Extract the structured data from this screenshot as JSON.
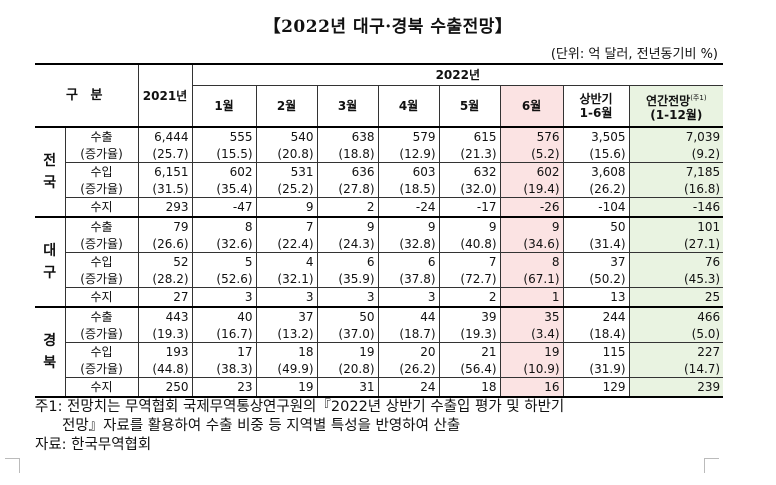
{
  "title": "【2022년 대구·경북 수출전망】",
  "unit": "(단위: 억 달러, 전년동기비 %)",
  "header": {
    "category": "구  분",
    "year2021": "2021년",
    "year2022": "2022년",
    "months": [
      "1월",
      "2월",
      "3월",
      "4월",
      "5월",
      "6월"
    ],
    "half_line1": "상반기",
    "half_line2": "1-6월",
    "annual_line1": "연간전망",
    "annual_note": "(주1)",
    "annual_line2": "(1-12월)"
  },
  "regions": [
    {
      "name_chars": [
        "전",
        "국"
      ],
      "rows": [
        {
          "label": "수출",
          "values": [
            "6,444",
            "555",
            "540",
            "638",
            "579",
            "615",
            "576",
            "3,505",
            "7,039"
          ]
        },
        {
          "label": "(증가율)",
          "values": [
            "(25.7)",
            "(15.5)",
            "(20.8)",
            "(18.8)",
            "(12.9)",
            "(21.3)",
            "(5.2)",
            "(15.6)",
            "(9.2)"
          ]
        },
        {
          "label": "수입",
          "values": [
            "6,151",
            "602",
            "531",
            "636",
            "603",
            "632",
            "602",
            "3,608",
            "7,185"
          ]
        },
        {
          "label": "(증가율)",
          "values": [
            "(31.5)",
            "(35.4)",
            "(25.2)",
            "(27.8)",
            "(18.5)",
            "(32.0)",
            "(19.4)",
            "(26.2)",
            "(16.8)"
          ]
        },
        {
          "label": "수지",
          "values": [
            "293",
            "-47",
            "9",
            "2",
            "-24",
            "-17",
            "-26",
            "-104",
            "-146"
          ]
        }
      ]
    },
    {
      "name_chars": [
        "대",
        "구"
      ],
      "rows": [
        {
          "label": "수출",
          "values": [
            "79",
            "8",
            "7",
            "9",
            "9",
            "9",
            "9",
            "50",
            "101"
          ]
        },
        {
          "label": "(증가율)",
          "values": [
            "(26.6)",
            "(32.6)",
            "(22.4)",
            "(24.3)",
            "(32.8)",
            "(40.8)",
            "(34.6)",
            "(31.4)",
            "(27.1)"
          ]
        },
        {
          "label": "수입",
          "values": [
            "52",
            "5",
            "4",
            "6",
            "6",
            "7",
            "8",
            "37",
            "76"
          ]
        },
        {
          "label": "(증가율)",
          "values": [
            "(28.2)",
            "(52.6)",
            "(32.1)",
            "(35.9)",
            "(37.8)",
            "(72.7)",
            "(67.1)",
            "(50.2)",
            "(45.3)"
          ]
        },
        {
          "label": "수지",
          "values": [
            "27",
            "3",
            "3",
            "3",
            "3",
            "2",
            "1",
            "13",
            "25"
          ]
        }
      ]
    },
    {
      "name_chars": [
        "경",
        "북"
      ],
      "rows": [
        {
          "label": "수출",
          "values": [
            "443",
            "40",
            "37",
            "50",
            "44",
            "39",
            "35",
            "244",
            "466"
          ]
        },
        {
          "label": "(증가율)",
          "values": [
            "(19.3)",
            "(16.7)",
            "(13.2)",
            "(37.0)",
            "(18.7)",
            "(19.3)",
            "(3.4)",
            "(18.4)",
            "(5.0)"
          ]
        },
        {
          "label": "수입",
          "values": [
            "193",
            "17",
            "18",
            "19",
            "20",
            "21",
            "19",
            "115",
            "227"
          ]
        },
        {
          "label": "(증가율)",
          "values": [
            "(44.8)",
            "(38.3)",
            "(49.9)",
            "(20.8)",
            "(26.2)",
            "(56.4)",
            "(10.9)",
            "(31.9)",
            "(14.7)"
          ]
        },
        {
          "label": "수지",
          "values": [
            "250",
            "23",
            "19",
            "31",
            "24",
            "18",
            "16",
            "129",
            "239"
          ]
        }
      ]
    }
  ],
  "footnotes": {
    "note1_line1": "주1: 전망치는 무역협회 국제무역통상연구원의『2022년 상반기 수출입 평가 및 하반기",
    "note1_line2": "전망』자료를 활용하여 수출 비중 등 지역별 특성을 반영하여 산출",
    "source": "자료: 한국무역협회"
  },
  "colors": {
    "june_highlight": "#fbe3e3",
    "annual_highlight": "#e9f3e1"
  }
}
